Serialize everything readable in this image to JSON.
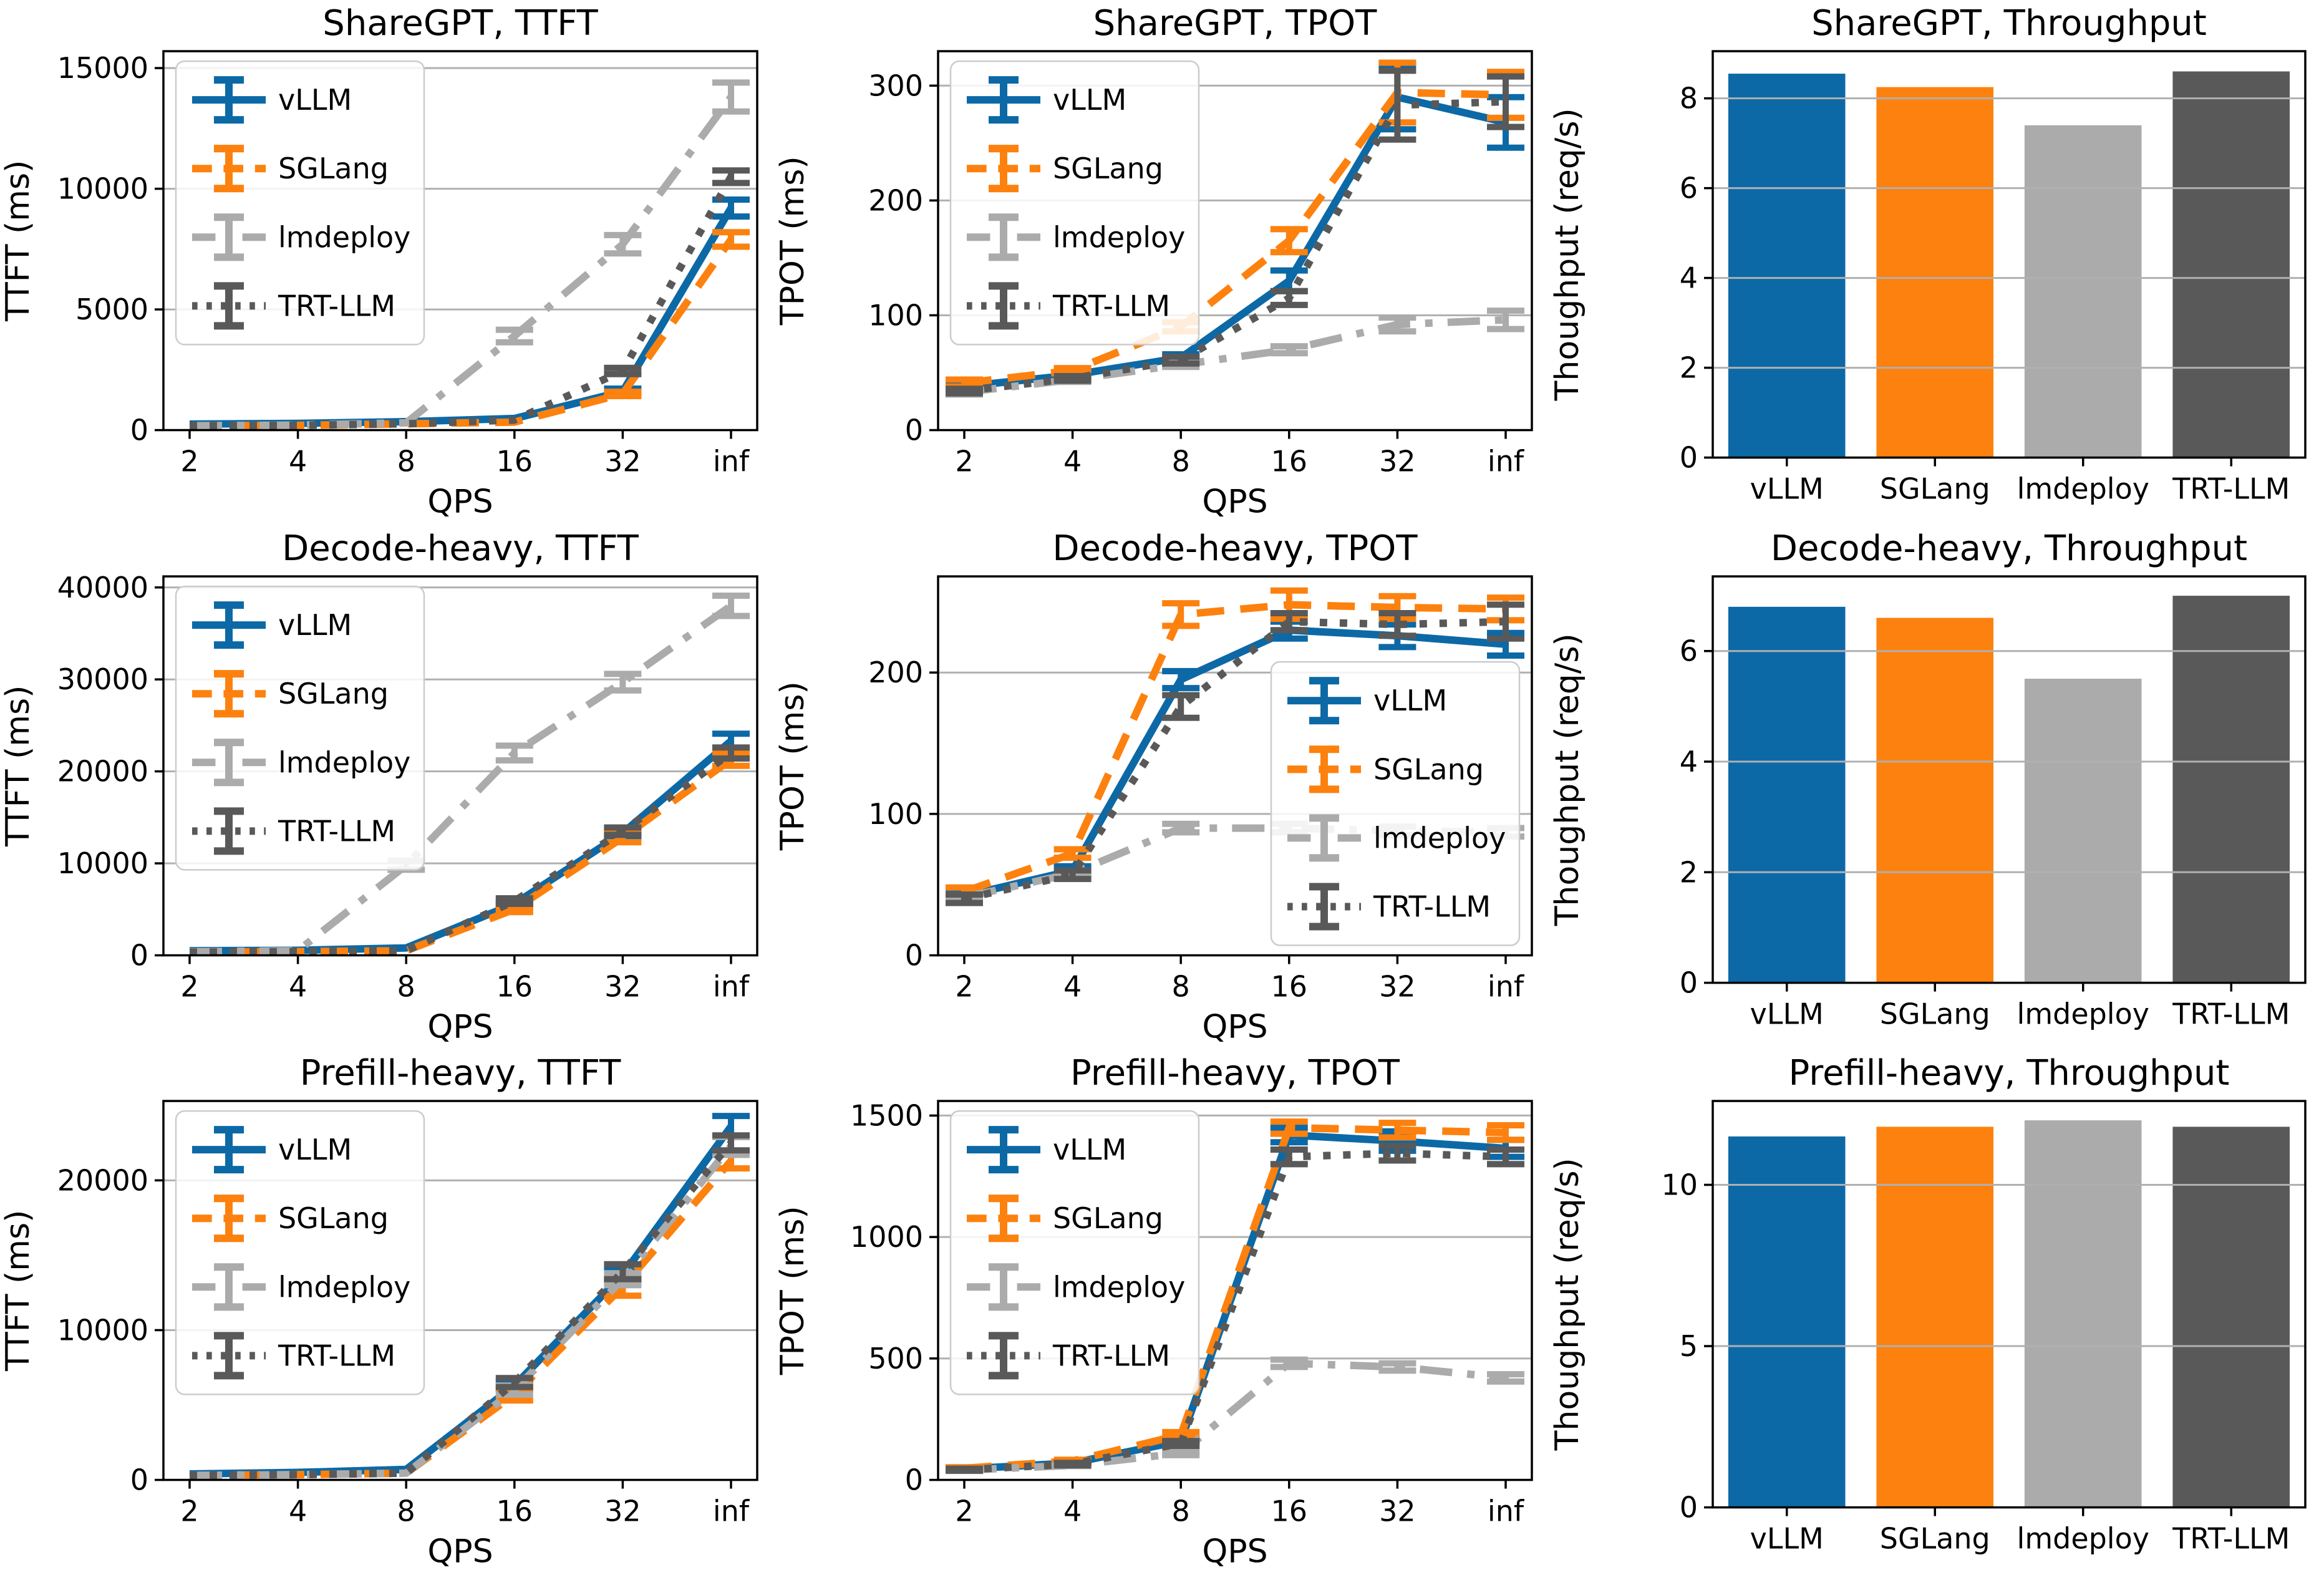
{
  "figure": {
    "background": "#ffffff",
    "description": "3x3 grid of LLM serving benchmark charts"
  },
  "style": {
    "grid_color": "#b0b0b0",
    "spine_color": "#000000",
    "text_color": "#000000",
    "legend_border": "#cccccc",
    "legend_background": "rgba(255,255,255,0.85)",
    "colors": {
      "vLLM": "#0c69a6",
      "SGLang": "#fd810e",
      "lmdeploy": "#ababab",
      "TRT-LLM": "#595959"
    }
  },
  "chart_data": [
    {
      "type": "line",
      "title": "ShareGPT, TTFT",
      "xlabel": "QPS",
      "ylabel": "TTFT (ms)",
      "categories": [
        "2",
        "4",
        "8",
        "16",
        "32",
        "inf"
      ],
      "yticks": [
        0,
        5000,
        10000,
        15000
      ],
      "ylim": [
        0,
        15700
      ],
      "grid": true,
      "legend": "upper-left",
      "series": [
        {
          "name": "vLLM",
          "color": "#0c69a6",
          "dash": "solid",
          "values": [
            250,
            280,
            350,
            480,
            1600,
            9200
          ],
          "errors": [
            0,
            0,
            0,
            0,
            120,
            350
          ]
        },
        {
          "name": "SGLang",
          "color": "#fd810e",
          "dash": "dashed",
          "values": [
            180,
            200,
            260,
            330,
            1500,
            7900
          ],
          "errors": [
            0,
            0,
            0,
            0,
            90,
            300
          ]
        },
        {
          "name": "lmdeploy",
          "color": "#ababab",
          "dash": "dashdot",
          "values": [
            180,
            210,
            300,
            3900,
            7700,
            13800
          ],
          "errors": [
            0,
            0,
            0,
            260,
            380,
            600
          ]
        },
        {
          "name": "TRT-LLM",
          "color": "#595959",
          "dash": "dotted",
          "values": [
            180,
            200,
            260,
            420,
            2450,
            10500
          ],
          "errors": [
            0,
            0,
            0,
            0,
            130,
            260
          ]
        }
      ]
    },
    {
      "type": "line",
      "title": "ShareGPT, TPOT",
      "xlabel": "QPS",
      "ylabel": "TPOT (ms)",
      "categories": [
        "2",
        "4",
        "8",
        "16",
        "32",
        "inf"
      ],
      "yticks": [
        0,
        100,
        200,
        300
      ],
      "ylim": [
        0,
        330
      ],
      "grid": true,
      "legend": "upper-left",
      "series": [
        {
          "name": "vLLM",
          "color": "#0c69a6",
          "dash": "solid",
          "values": [
            38,
            48,
            63,
            130,
            290,
            268
          ],
          "errors": [
            3,
            2,
            3,
            9,
            28,
            22
          ]
        },
        {
          "name": "SGLang",
          "color": "#fd810e",
          "dash": "dashed",
          "values": [
            41,
            52,
            90,
            165,
            294,
            292
          ],
          "errors": [
            3,
            2,
            4,
            10,
            26,
            20
          ]
        },
        {
          "name": "lmdeploy",
          "color": "#ababab",
          "dash": "dashdot",
          "values": [
            33,
            44,
            57,
            70,
            92,
            96
          ],
          "errors": [
            2,
            2,
            2,
            3,
            6,
            8
          ]
        },
        {
          "name": "TRT-LLM",
          "color": "#595959",
          "dash": "dotted",
          "values": [
            34,
            45,
            61,
            115,
            283,
            286
          ],
          "errors": [
            2,
            2,
            3,
            6,
            30,
            22
          ]
        }
      ]
    },
    {
      "type": "bar",
      "title": "ShareGPT, Throughput",
      "xlabel": "",
      "ylabel": "Thoughput (req/s)",
      "categories": [
        "vLLM",
        "SGLang",
        "lmdeploy",
        "TRT-LLM"
      ],
      "values": [
        8.55,
        8.25,
        7.4,
        8.6
      ],
      "colors": [
        "#0c69a6",
        "#fd810e",
        "#ababab",
        "#595959"
      ],
      "yticks": [
        0,
        2,
        4,
        6,
        8
      ],
      "ylim": [
        0,
        9.05
      ],
      "grid": true,
      "legend": "none"
    },
    {
      "type": "line",
      "title": "Decode-heavy, TTFT",
      "xlabel": "QPS",
      "ylabel": "TTFT (ms)",
      "categories": [
        "2",
        "4",
        "8",
        "16",
        "32",
        "inf"
      ],
      "yticks": [
        0,
        10000,
        20000,
        30000,
        40000
      ],
      "ylim": [
        0,
        41200
      ],
      "grid": true,
      "legend": "upper-left",
      "series": [
        {
          "name": "vLLM",
          "color": "#0c69a6",
          "dash": "solid",
          "values": [
            500,
            550,
            800,
            5600,
            13300,
            23300
          ],
          "errors": [
            0,
            0,
            0,
            260,
            400,
            800
          ]
        },
        {
          "name": "SGLang",
          "color": "#fd810e",
          "dash": "dashed",
          "values": [
            350,
            400,
            500,
            5000,
            12800,
            21300
          ],
          "errors": [
            0,
            0,
            0,
            300,
            500,
            700
          ]
        },
        {
          "name": "lmdeploy",
          "color": "#ababab",
          "dash": "dashdot",
          "values": [
            400,
            500,
            9800,
            22000,
            29700,
            38000
          ],
          "errors": [
            0,
            0,
            500,
            800,
            900,
            1100
          ]
        },
        {
          "name": "TRT-LLM",
          "color": "#595959",
          "dash": "dotted",
          "values": [
            350,
            400,
            500,
            5900,
            13500,
            22000
          ],
          "errors": [
            0,
            0,
            0,
            300,
            400,
            600
          ]
        }
      ]
    },
    {
      "type": "line",
      "title": "Decode-heavy, TPOT",
      "xlabel": "QPS",
      "ylabel": "TPOT (ms)",
      "categories": [
        "2",
        "4",
        "8",
        "16",
        "32",
        "inf"
      ],
      "yticks": [
        0,
        100,
        200
      ],
      "ylim": [
        0,
        268
      ],
      "grid": true,
      "legend": "lower-right",
      "series": [
        {
          "name": "vLLM",
          "color": "#0c69a6",
          "dash": "solid",
          "values": [
            42,
            60,
            195,
            230,
            226,
            220
          ],
          "errors": [
            3,
            3,
            6,
            6,
            8,
            8
          ]
        },
        {
          "name": "SGLang",
          "color": "#fd810e",
          "dash": "dashed",
          "values": [
            45,
            72,
            241,
            248,
            246,
            245
          ],
          "errors": [
            3,
            3,
            8,
            10,
            8,
            8
          ]
        },
        {
          "name": "lmdeploy",
          "color": "#ababab",
          "dash": "dashdot",
          "values": [
            41,
            58,
            90,
            90,
            88,
            87
          ],
          "errors": [
            2,
            2,
            3,
            3,
            3,
            3
          ]
        },
        {
          "name": "TRT-LLM",
          "color": "#595959",
          "dash": "dotted",
          "values": [
            40,
            57,
            176,
            236,
            234,
            236
          ],
          "errors": [
            3,
            3,
            8,
            6,
            8,
            12
          ]
        }
      ]
    },
    {
      "type": "bar",
      "title": "Decode-heavy, Throughput",
      "xlabel": "",
      "ylabel": "Thoughput (req/s)",
      "categories": [
        "vLLM",
        "SGLang",
        "lmdeploy",
        "TRT-LLM"
      ],
      "values": [
        6.8,
        6.6,
        5.5,
        7.0
      ],
      "colors": [
        "#0c69a6",
        "#fd810e",
        "#ababab",
        "#595959"
      ],
      "yticks": [
        0,
        2,
        4,
        6
      ],
      "ylim": [
        0,
        7.35
      ],
      "grid": true,
      "legend": "none"
    },
    {
      "type": "line",
      "title": "Prefill-heavy, TTFT",
      "xlabel": "QPS",
      "ylabel": "TTFT (ms)",
      "categories": [
        "2",
        "4",
        "8",
        "16",
        "32",
        "inf"
      ],
      "yticks": [
        0,
        10000,
        20000
      ],
      "ylim": [
        0,
        25300
      ],
      "grid": true,
      "legend": "upper-left",
      "series": [
        {
          "name": "vLLM",
          "color": "#0c69a6",
          "dash": "solid",
          "values": [
            400,
            500,
            700,
            6300,
            13700,
            23600
          ],
          "errors": [
            0,
            0,
            0,
            260,
            400,
            700
          ]
        },
        {
          "name": "SGLang",
          "color": "#fd810e",
          "dash": "dashed",
          "values": [
            300,
            350,
            450,
            5700,
            12900,
            21300
          ],
          "errors": [
            0,
            0,
            0,
            400,
            600,
            500
          ]
        },
        {
          "name": "lmdeploy",
          "color": "#ababab",
          "dash": "dashdot",
          "values": [
            300,
            350,
            450,
            6000,
            13400,
            22300
          ],
          "errors": [
            0,
            0,
            0,
            300,
            400,
            600
          ]
        },
        {
          "name": "TRT-LLM",
          "color": "#595959",
          "dash": "dotted",
          "values": [
            300,
            350,
            450,
            6500,
            13900,
            22500
          ],
          "errors": [
            0,
            0,
            0,
            300,
            500,
            500
          ]
        }
      ]
    },
    {
      "type": "line",
      "title": "Prefill-heavy, TPOT",
      "xlabel": "QPS",
      "ylabel": "TPOT (ms)",
      "categories": [
        "2",
        "4",
        "8",
        "16",
        "32",
        "inf"
      ],
      "yticks": [
        0,
        500,
        1000,
        1500
      ],
      "ylim": [
        0,
        1560
      ],
      "grid": true,
      "legend": "upper-left",
      "series": [
        {
          "name": "vLLM",
          "color": "#0c69a6",
          "dash": "solid",
          "values": [
            45,
            70,
            160,
            1420,
            1395,
            1365
          ],
          "errors": [
            4,
            5,
            10,
            30,
            40,
            35
          ]
        },
        {
          "name": "SGLang",
          "color": "#fd810e",
          "dash": "dashed",
          "values": [
            48,
            78,
            185,
            1450,
            1440,
            1430
          ],
          "errors": [
            4,
            5,
            12,
            25,
            30,
            30
          ]
        },
        {
          "name": "lmdeploy",
          "color": "#ababab",
          "dash": "dashdot",
          "values": [
            40,
            60,
            110,
            480,
            465,
            420
          ],
          "errors": [
            3,
            3,
            8,
            15,
            15,
            15
          ]
        },
        {
          "name": "TRT-LLM",
          "color": "#595959",
          "dash": "dotted",
          "values": [
            42,
            65,
            150,
            1330,
            1345,
            1330
          ],
          "errors": [
            4,
            5,
            10,
            30,
            30,
            30
          ]
        }
      ]
    },
    {
      "type": "bar",
      "title": "Prefill-heavy, Throughput",
      "xlabel": "",
      "ylabel": "Thoughput (req/s)",
      "categories": [
        "vLLM",
        "SGLang",
        "lmdeploy",
        "TRT-LLM"
      ],
      "values": [
        11.5,
        11.8,
        12.0,
        11.8
      ],
      "colors": [
        "#0c69a6",
        "#fd810e",
        "#ababab",
        "#595959"
      ],
      "yticks": [
        0,
        5,
        10
      ],
      "ylim": [
        0,
        12.6
      ],
      "grid": true,
      "legend": "none"
    }
  ]
}
